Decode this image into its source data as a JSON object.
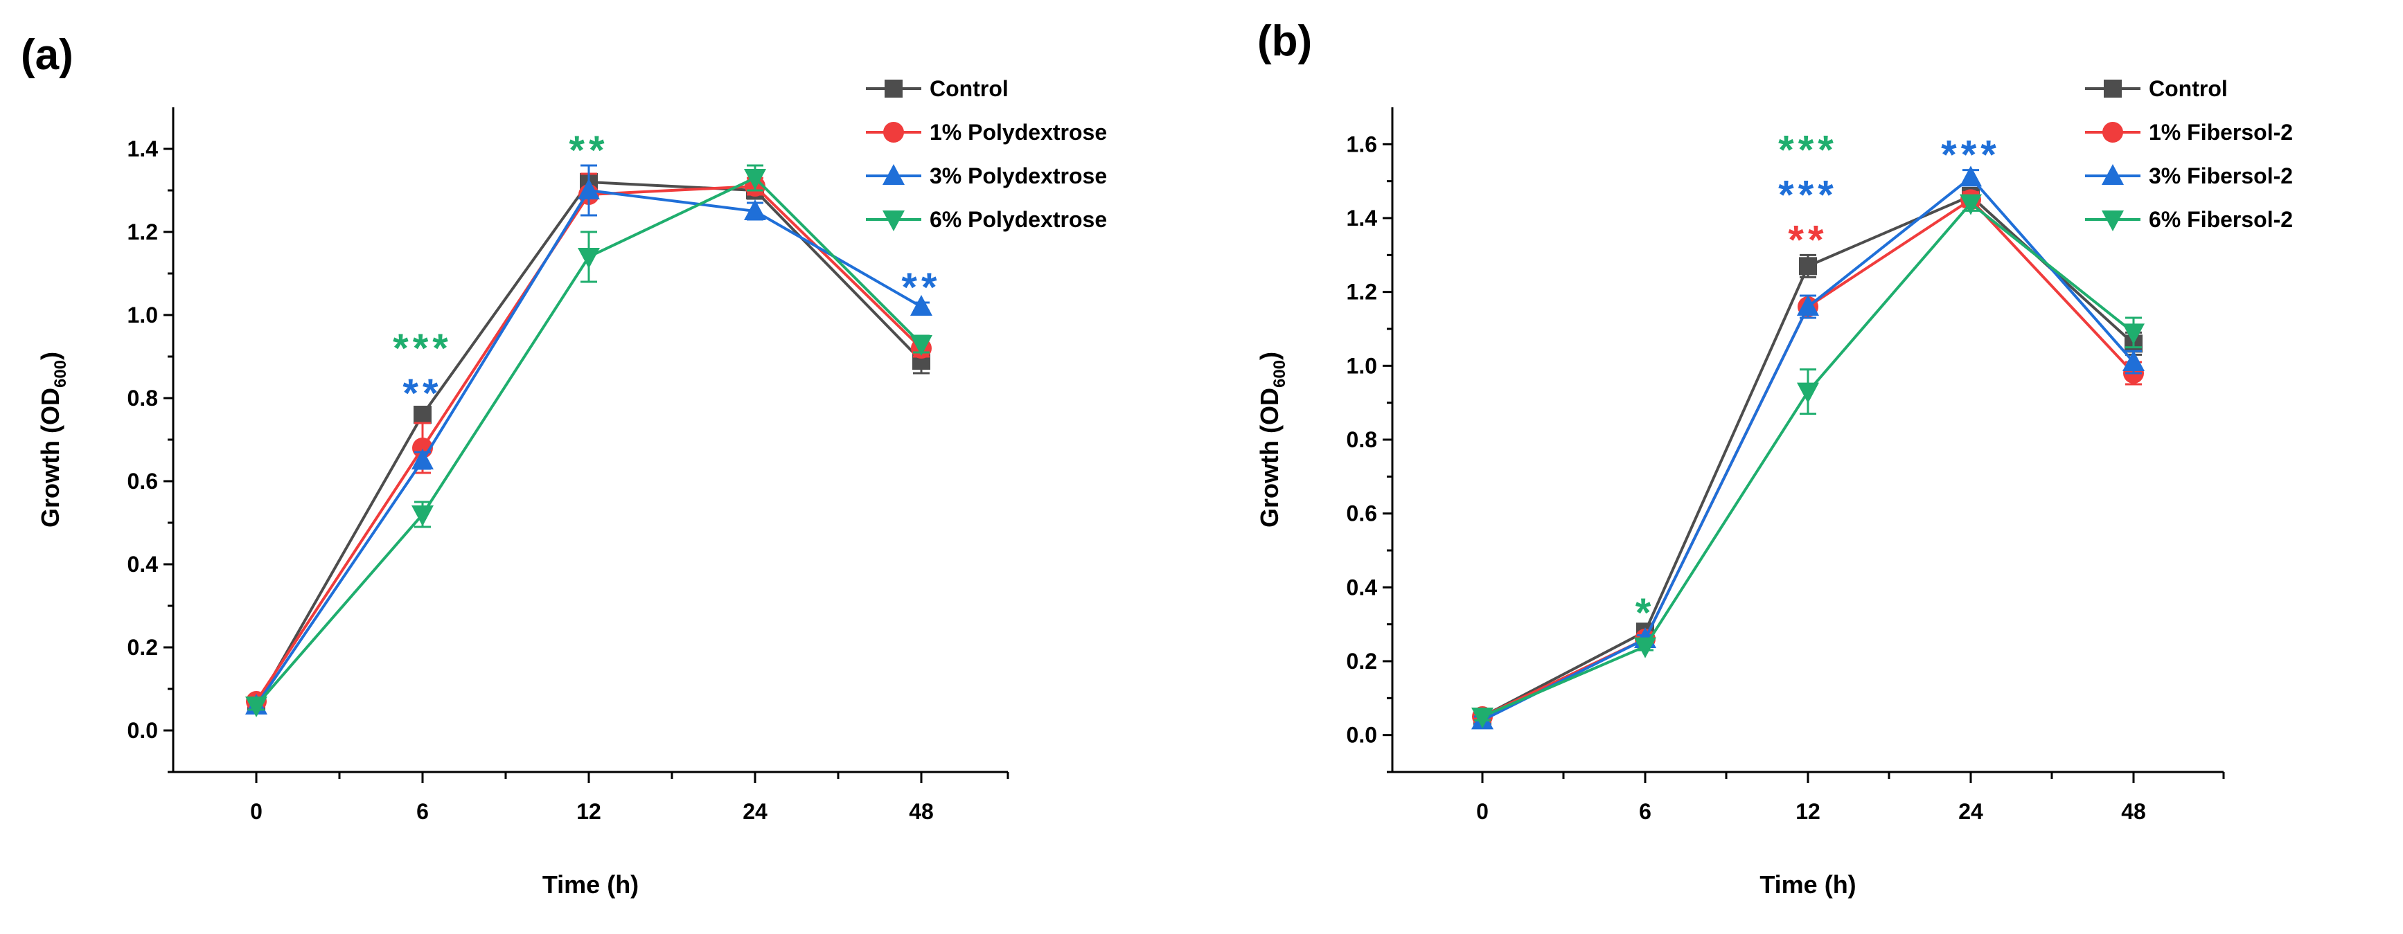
{
  "chart_data": [
    {
      "type": "line",
      "panel_label": "(a)",
      "xlabel": "Time (h)",
      "ylabel_main": "Growth (OD",
      "ylabel_sub": "600",
      "ylabel_close": ")",
      "categories": [
        "0",
        "6",
        "12",
        "24",
        "48"
      ],
      "ylim": [
        -0.1,
        1.5
      ],
      "yticks": [
        "0.0",
        "0.2",
        "0.4",
        "0.6",
        "0.8",
        "1.0",
        "1.2",
        "1.4"
      ],
      "yticks_values": [
        0.0,
        0.2,
        0.4,
        0.6,
        0.8,
        1.0,
        1.2,
        1.4
      ],
      "grid": false,
      "legend_position": "top-right",
      "series": [
        {
          "name": "Control",
          "color": "#4d4d4d",
          "marker": "square",
          "values": [
            0.06,
            0.76,
            1.32,
            1.3,
            0.89
          ],
          "errors": [
            0.01,
            0.015,
            0.02,
            0.02,
            0.03
          ]
        },
        {
          "name": "1% Polydextrose",
          "color": "#f03c3c",
          "marker": "circle",
          "values": [
            0.07,
            0.68,
            1.29,
            1.31,
            0.92
          ],
          "errors": [
            0.01,
            0.06,
            0.05,
            0.02,
            0.02
          ]
        },
        {
          "name": "3% Polydextrose",
          "color": "#1f6fd8",
          "marker": "triangle-up",
          "values": [
            0.06,
            0.65,
            1.3,
            1.25,
            1.02
          ],
          "errors": [
            0.01,
            0.02,
            0.06,
            0.02,
            0.01
          ]
        },
        {
          "name": "6% Polydextrose",
          "color": "#1fae6e",
          "marker": "triangle-down",
          "values": [
            0.06,
            0.52,
            1.14,
            1.33,
            0.93
          ],
          "errors": [
            0.01,
            0.03,
            0.06,
            0.03,
            0.02
          ]
        }
      ],
      "annotations": [
        {
          "category": "6",
          "stars": "***",
          "color": "#1fae6e",
          "row": 2
        },
        {
          "category": "6",
          "stars": "**",
          "color": "#1f6fd8",
          "row": 1
        },
        {
          "category": "12",
          "stars": "**",
          "color": "#1fae6e",
          "row": 1
        },
        {
          "category": "48",
          "stars": "**",
          "color": "#1f6fd8",
          "row": 1
        }
      ]
    },
    {
      "type": "line",
      "panel_label": "(b)",
      "xlabel": "Time (h)",
      "ylabel_main": "Growth (OD",
      "ylabel_sub": "600",
      "ylabel_close": ")",
      "categories": [
        "0",
        "6",
        "12",
        "24",
        "48"
      ],
      "ylim": [
        -0.1,
        1.7
      ],
      "yticks": [
        "0.0",
        "0.2",
        "0.4",
        "0.6",
        "0.8",
        "1.0",
        "1.2",
        "1.4",
        "1.6"
      ],
      "yticks_values": [
        0.0,
        0.2,
        0.4,
        0.6,
        0.8,
        1.0,
        1.2,
        1.4,
        1.6
      ],
      "grid": false,
      "legend_position": "top-right",
      "series": [
        {
          "name": "Control",
          "color": "#4d4d4d",
          "marker": "square",
          "values": [
            0.05,
            0.28,
            1.27,
            1.46,
            1.06
          ],
          "errors": [
            0.01,
            0.01,
            0.03,
            0.02,
            0.03
          ]
        },
        {
          "name": "1% Fibersol-2",
          "color": "#f03c3c",
          "marker": "circle",
          "values": [
            0.05,
            0.26,
            1.16,
            1.45,
            0.98
          ],
          "errors": [
            0.01,
            0.01,
            0.03,
            0.02,
            0.03
          ]
        },
        {
          "name": "3% Fibersol-2",
          "color": "#1f6fd8",
          "marker": "triangle-up",
          "values": [
            0.04,
            0.26,
            1.16,
            1.51,
            1.01
          ],
          "errors": [
            0.01,
            0.01,
            0.03,
            0.02,
            0.03
          ]
        },
        {
          "name": "6% Fibersol-2",
          "color": "#1fae6e",
          "marker": "triangle-down",
          "values": [
            0.05,
            0.24,
            0.93,
            1.44,
            1.09
          ],
          "errors": [
            0.01,
            0.01,
            0.06,
            0.02,
            0.04
          ]
        }
      ],
      "annotations": [
        {
          "category": "6",
          "stars": "*",
          "color": "#1fae6e",
          "row": 1
        },
        {
          "category": "12",
          "stars": "***",
          "color": "#1fae6e",
          "row": 3
        },
        {
          "category": "12",
          "stars": "***",
          "color": "#1f6fd8",
          "row": 2
        },
        {
          "category": "12",
          "stars": "**",
          "color": "#f03c3c",
          "row": 1
        },
        {
          "category": "24",
          "stars": "***",
          "color": "#1f6fd8",
          "row": 1
        }
      ]
    }
  ]
}
